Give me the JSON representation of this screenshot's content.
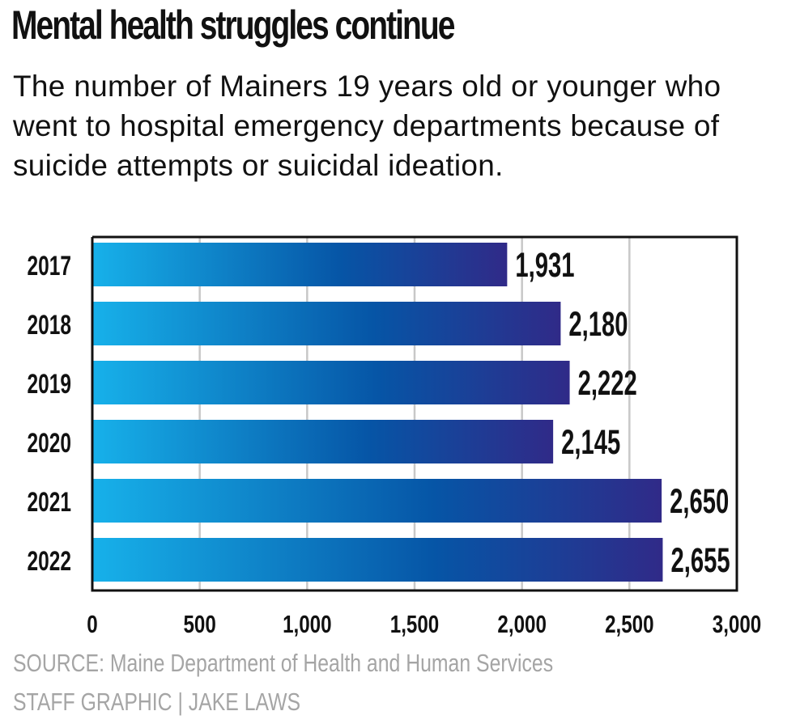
{
  "title": "Mental health struggles continue",
  "subtitle": "The number of Mainers 19 years old or younger who went to hospital emergency departments because of suicide attempts or suicidal ideation.",
  "source": "SOURCE: Maine Department of Health and Human Services",
  "credit": "STAFF GRAPHIC | JAKE LAWS",
  "chart_data": {
    "type": "bar",
    "orientation": "horizontal",
    "categories": [
      "2017",
      "2018",
      "2019",
      "2020",
      "2021",
      "2022"
    ],
    "values": [
      1931,
      2180,
      2222,
      2145,
      2650,
      2655
    ],
    "value_labels": [
      "1,931",
      "2,180",
      "2,222",
      "2,145",
      "2,650",
      "2,655"
    ],
    "xlim": [
      0,
      3000
    ],
    "xticks": [
      0,
      500,
      1000,
      1500,
      2000,
      2500,
      3000
    ],
    "xtick_labels": [
      "0",
      "500",
      "1,000",
      "1,500",
      "2,000",
      "2,500",
      "3,000"
    ],
    "grid": "vertical",
    "colors": {
      "bar_start": "#17b1ea",
      "bar_mid": "#0655a6",
      "bar_end": "#302a88",
      "grid": "#c8c8c8",
      "frame": "#111111"
    }
  }
}
